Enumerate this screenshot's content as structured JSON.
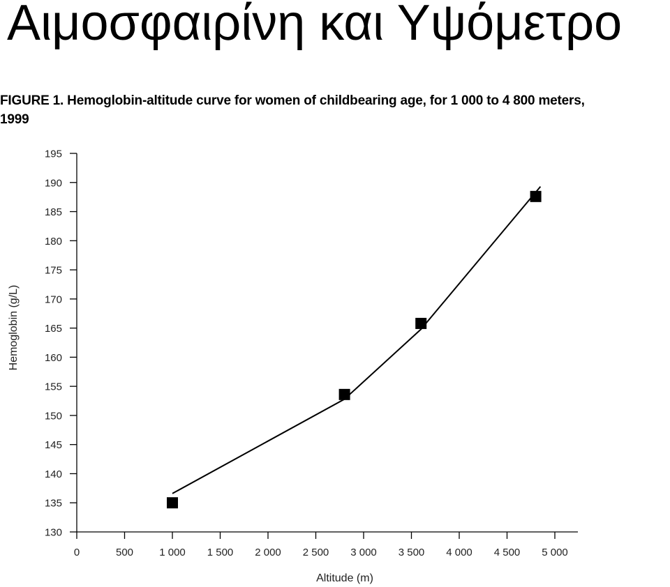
{
  "slide": {
    "title": "Αιμοσφαιρίνη και Υψόμετρο"
  },
  "figure": {
    "caption": "FIGURE 1. Hemoglobin-altitude curve for women of childbearing age, for 1 000 to 4 800 meters, 1999"
  },
  "chart_data": {
    "type": "scatter",
    "xlabel": "Altitude (m)",
    "ylabel": "Hemoglobin (g/L)",
    "xlim": [
      0,
      5000
    ],
    "ylim": [
      130,
      195
    ],
    "x_ticks": [
      0,
      500,
      1000,
      1500,
      2000,
      2500,
      3000,
      3500,
      4000,
      4500,
      5000
    ],
    "x_tick_labels": [
      "0",
      "500",
      "1 000",
      "1 500",
      "2 000",
      "2 500",
      "3 000",
      "3 500",
      "4 000",
      "4 500",
      "5 000"
    ],
    "y_ticks": [
      130,
      135,
      140,
      145,
      150,
      155,
      160,
      165,
      170,
      175,
      180,
      185,
      190,
      195
    ],
    "y_tick_labels": [
      "130",
      "135",
      "140",
      "145",
      "150",
      "155",
      "160",
      "165",
      "170",
      "175",
      "180",
      "185",
      "190",
      "195"
    ],
    "grid": false,
    "series": [
      {
        "kind": "points",
        "marker": "square",
        "x": [
          1000,
          2800,
          3600,
          4800
        ],
        "y": [
          135.0,
          153.6,
          165.8,
          187.6
        ]
      },
      {
        "kind": "line",
        "x": [
          1000,
          2800,
          3600,
          4850
        ],
        "y": [
          136.6,
          152.8,
          164.8,
          189.3
        ]
      }
    ]
  }
}
